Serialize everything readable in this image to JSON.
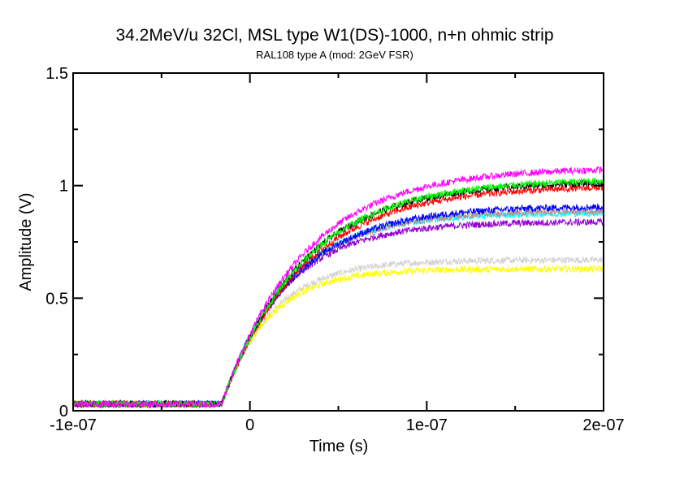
{
  "chart_data": {
    "type": "line",
    "title": "34.2MeV/u 32Cl, MSL type W1(DS)-1000, n+n ohmic strip",
    "subtitle": "RAL108 type A (mod: 2GeV FSR)",
    "xlabel": "Time (s)",
    "ylabel": "Amplitude (V)",
    "xlim": [
      -1e-07,
      2e-07
    ],
    "ylim": [
      0,
      1.5
    ],
    "xticks": [
      -1e-07,
      0,
      1e-07,
      2e-07
    ],
    "xtick_labels": [
      "-1e-07",
      "0",
      "1e-07",
      "2e-07"
    ],
    "yticks": [
      0,
      0.5,
      1,
      1.5
    ],
    "ytick_labels": [
      "0",
      "0.5",
      "1",
      "1.5"
    ],
    "grid": false,
    "legend": "none",
    "model": "baseline until onset, then baseline + amplitude*(1-exp(-(t-onset)/tau)) with noise",
    "series": [
      {
        "color": "#ff00ff",
        "baseline": 0.03,
        "onset": -1.6e-08,
        "amplitude": 1.05,
        "tau": 4.6e-08,
        "plateau": 1.08
      },
      {
        "color": "#00ff00",
        "baseline": 0.03,
        "onset": -1.6e-08,
        "amplitude": 1.0,
        "tau": 4.6e-08,
        "plateau": 1.03
      },
      {
        "color": "#000000",
        "baseline": 0.03,
        "onset": -1.6e-08,
        "amplitude": 0.99,
        "tau": 4.5e-08,
        "plateau": 1.02
      },
      {
        "color": "#ff0000",
        "baseline": 0.03,
        "onset": -1.6e-08,
        "amplitude": 0.97,
        "tau": 4.6e-08,
        "plateau": 1.0
      },
      {
        "color": "#0000ff",
        "baseline": 0.03,
        "onset": -1.6e-08,
        "amplitude": 0.88,
        "tau": 4e-08,
        "plateau": 0.91
      },
      {
        "color": "#bc8f8f",
        "baseline": 0.03,
        "onset": -1.6e-08,
        "amplitude": 0.86,
        "tau": 3.8e-08,
        "plateau": 0.89
      },
      {
        "color": "#00ffff",
        "baseline": 0.03,
        "onset": -1.6e-08,
        "amplitude": 0.85,
        "tau": 3.6e-08,
        "plateau": 0.88
      },
      {
        "color": "#9400d3",
        "baseline": 0.03,
        "onset": -1.6e-08,
        "amplitude": 0.81,
        "tau": 3.5e-08,
        "plateau": 0.84
      },
      {
        "color": "#d3d3d3",
        "baseline": 0.03,
        "onset": -1.6e-08,
        "amplitude": 0.64,
        "tau": 2.8e-08,
        "plateau": 0.67
      },
      {
        "color": "#ffff00",
        "baseline": 0.03,
        "onset": -1.6e-08,
        "amplitude": 0.6,
        "tau": 2.6e-08,
        "plateau": 0.63
      }
    ]
  }
}
